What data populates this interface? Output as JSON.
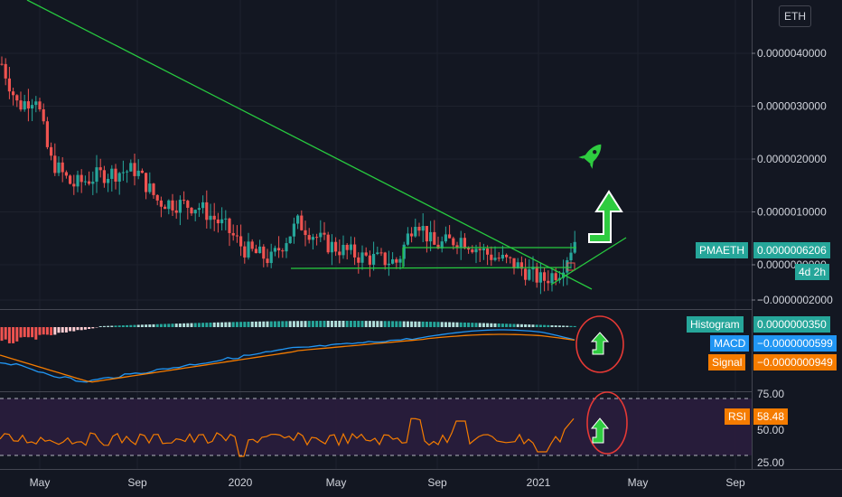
{
  "currency_button": "ETH",
  "chart_data": [
    {
      "type": "candlestick",
      "title": "",
      "y_ticks": [
        "0.0000040000",
        "0.0000030000",
        "0.0000020000",
        "0.0000010000",
        "0.0000000000",
        "−0.0000002000"
      ],
      "x_ticks": [
        "May",
        "Sep",
        "2020",
        "May",
        "Sep",
        "2021",
        "May",
        "Sep"
      ],
      "price_label": {
        "name": "PMAETH",
        "value": "0.0000006206",
        "countdown": "4d 2h"
      },
      "colors": {
        "up": "#26a69a",
        "down": "#ef5350",
        "trendline": "#27c93f"
      },
      "annotations": [
        "rocket-icon",
        "up-arrow-icon"
      ],
      "candles_approx": [
        [
          3.9,
          4.4,
          2.9,
          3.0
        ],
        [
          3.0,
          3.5,
          2.8,
          3.4
        ],
        [
          3.4,
          4.3,
          3.1,
          3.3
        ],
        [
          3.3,
          3.4,
          2.8,
          2.9
        ],
        [
          2.9,
          3.2,
          2.6,
          3.1
        ],
        [
          3.1,
          3.3,
          2.0,
          2.2
        ],
        [
          2.2,
          2.8,
          1.9,
          2.5
        ],
        [
          2.5,
          2.7,
          1.5,
          1.6
        ],
        [
          1.6,
          2.4,
          1.0,
          2.1
        ],
        [
          2.1,
          2.3,
          1.5,
          1.7
        ],
        [
          1.7,
          2.2,
          1.5,
          2.0
        ],
        [
          2.0,
          2.2,
          1.4,
          1.6
        ],
        [
          1.6,
          1.8,
          1.2,
          1.3
        ],
        [
          1.3,
          1.5,
          1.0,
          1.1
        ],
        [
          1.1,
          1.7,
          0.9,
          1.4
        ],
        [
          1.4,
          1.5,
          0.8,
          0.9
        ],
        [
          0.9,
          1.2,
          0.4,
          0.5
        ],
        [
          0.5,
          0.9,
          0.2,
          0.4
        ],
        [
          0.4,
          0.7,
          0.1,
          0.3
        ],
        [
          0.3,
          0.5,
          0.15,
          0.25
        ],
        [
          0.25,
          0.9,
          0.2,
          0.8
        ],
        [
          0.8,
          0.9,
          0.45,
          0.55
        ],
        [
          0.55,
          0.6,
          0.25,
          0.3
        ],
        [
          0.3,
          0.35,
          0.1,
          0.15
        ],
        [
          0.15,
          0.35,
          0.05,
          0.25
        ],
        [
          0.25,
          0.3,
          0.05,
          0.1
        ],
        [
          0.1,
          1.3,
          0.05,
          0.75
        ],
        [
          0.75,
          0.95,
          0.4,
          0.5
        ],
        [
          0.5,
          0.7,
          0.3,
          0.4
        ],
        [
          0.4,
          1.1,
          0.3,
          0.7
        ],
        [
          0.7,
          0.8,
          0.2,
          0.3
        ],
        [
          0.3,
          0.5,
          -0.2,
          -0.1
        ],
        [
          -0.1,
          0.1,
          -0.25,
          -0.2
        ],
        [
          -0.2,
          0.25,
          -0.3,
          0.2
        ],
        [
          0.2,
          0.65,
          0.1,
          0.6
        ]
      ]
    },
    {
      "type": "line",
      "title": "",
      "series": [
        {
          "name": "Histogram",
          "value": "0.0000000350",
          "color": "#26a69a"
        },
        {
          "name": "MACD",
          "value": "−0.0000000599",
          "color": "#2196f3"
        },
        {
          "name": "Signal",
          "value": "−0.0000000949",
          "color": "#f57c00"
        }
      ]
    },
    {
      "type": "line",
      "title": "",
      "y_ticks": [
        "75.00",
        "50.00",
        "25.00"
      ],
      "series": [
        {
          "name": "RSI",
          "value": "58.48",
          "color": "#f57c00"
        }
      ],
      "bands": [
        70,
        30
      ]
    }
  ]
}
